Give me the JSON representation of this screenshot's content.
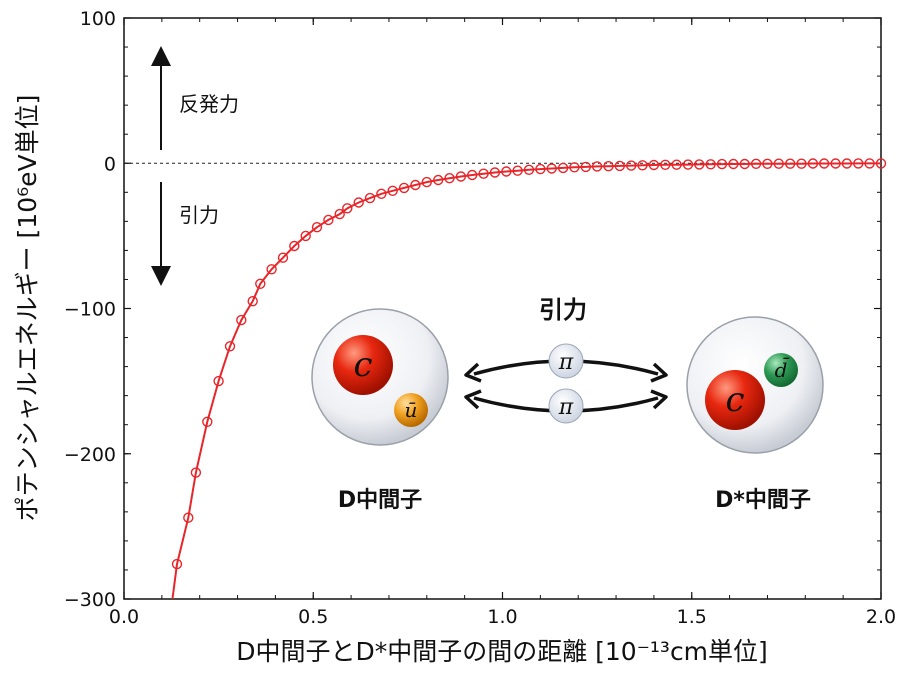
{
  "chart_data": {
    "type": "line",
    "xlabel": "D中間子とD*中間子の間の距離 [10⁻¹³cm単位]",
    "ylabel": "ポテンシャルエネルギー [10⁶eV単位]",
    "xlim": [
      0.0,
      2.0
    ],
    "ylim": [
      -300,
      100
    ],
    "x_ticks": [
      "0.0",
      "0.5",
      "1.0",
      "1.5",
      "2.0"
    ],
    "y_ticks": [
      "100",
      "0",
      "−100",
      "−200",
      "−300"
    ],
    "grid": false,
    "reference_line": {
      "y": 0,
      "style": "dashed"
    },
    "series": [
      {
        "color": "#e8262a",
        "marker": "open-circle",
        "x": [
          0.14,
          0.17,
          0.19,
          0.22,
          0.25,
          0.28,
          0.31,
          0.34,
          0.36,
          0.39,
          0.42,
          0.45,
          0.48,
          0.51,
          0.54,
          0.57,
          0.59,
          0.62,
          0.65,
          0.68,
          0.71,
          0.74,
          0.77,
          0.8,
          0.83,
          0.86,
          0.89,
          0.92,
          0.95,
          0.98,
          1.01,
          1.04,
          1.07,
          1.1,
          1.13,
          1.16,
          1.19,
          1.22,
          1.25,
          1.28,
          1.31,
          1.34,
          1.37,
          1.4,
          1.43,
          1.46,
          1.49,
          1.52,
          1.55,
          1.58,
          1.61,
          1.64,
          1.67,
          1.7,
          1.73,
          1.76,
          1.79,
          1.82,
          1.85,
          1.88,
          1.91,
          1.94,
          1.97,
          2.0
        ],
        "y": [
          -276,
          -244,
          -213,
          -178,
          -150,
          -126,
          -108,
          -95,
          -83,
          -73,
          -65,
          -57,
          -50,
          -44,
          -39,
          -35,
          -31,
          -27,
          -24,
          -21,
          -19,
          -17,
          -15,
          -13,
          -11.5,
          -10.3,
          -9.1,
          -8.1,
          -7.2,
          -6.4,
          -5.7,
          -5.1,
          -4.5,
          -4.0,
          -3.6,
          -3.2,
          -2.8,
          -2.5,
          -2.2,
          -2.0,
          -1.8,
          -1.6,
          -1.4,
          -1.2,
          -1.1,
          -1.0,
          -0.9,
          -0.8,
          -0.7,
          -0.6,
          -0.5,
          -0.5,
          -0.4,
          -0.4,
          -0.3,
          -0.3,
          -0.3,
          -0.2,
          -0.2,
          -0.2,
          -0.2,
          -0.1,
          -0.1,
          -0.1
        ]
      }
    ]
  },
  "annotations": {
    "repulsion": "反発力",
    "attraction": "引力",
    "force_title": "引力",
    "pion": "π",
    "meson_left": "D中間子",
    "meson_right": "D*中間子",
    "quark_c": "c",
    "quark_ubar": "ū",
    "quark_dbar": "d̄"
  },
  "colors": {
    "curve": "#e8262a",
    "quark_c": "#e02010",
    "quark_ubar": "#f0a020",
    "quark_dbar": "#2e9a55",
    "pion_ball": "#eef2f8"
  }
}
